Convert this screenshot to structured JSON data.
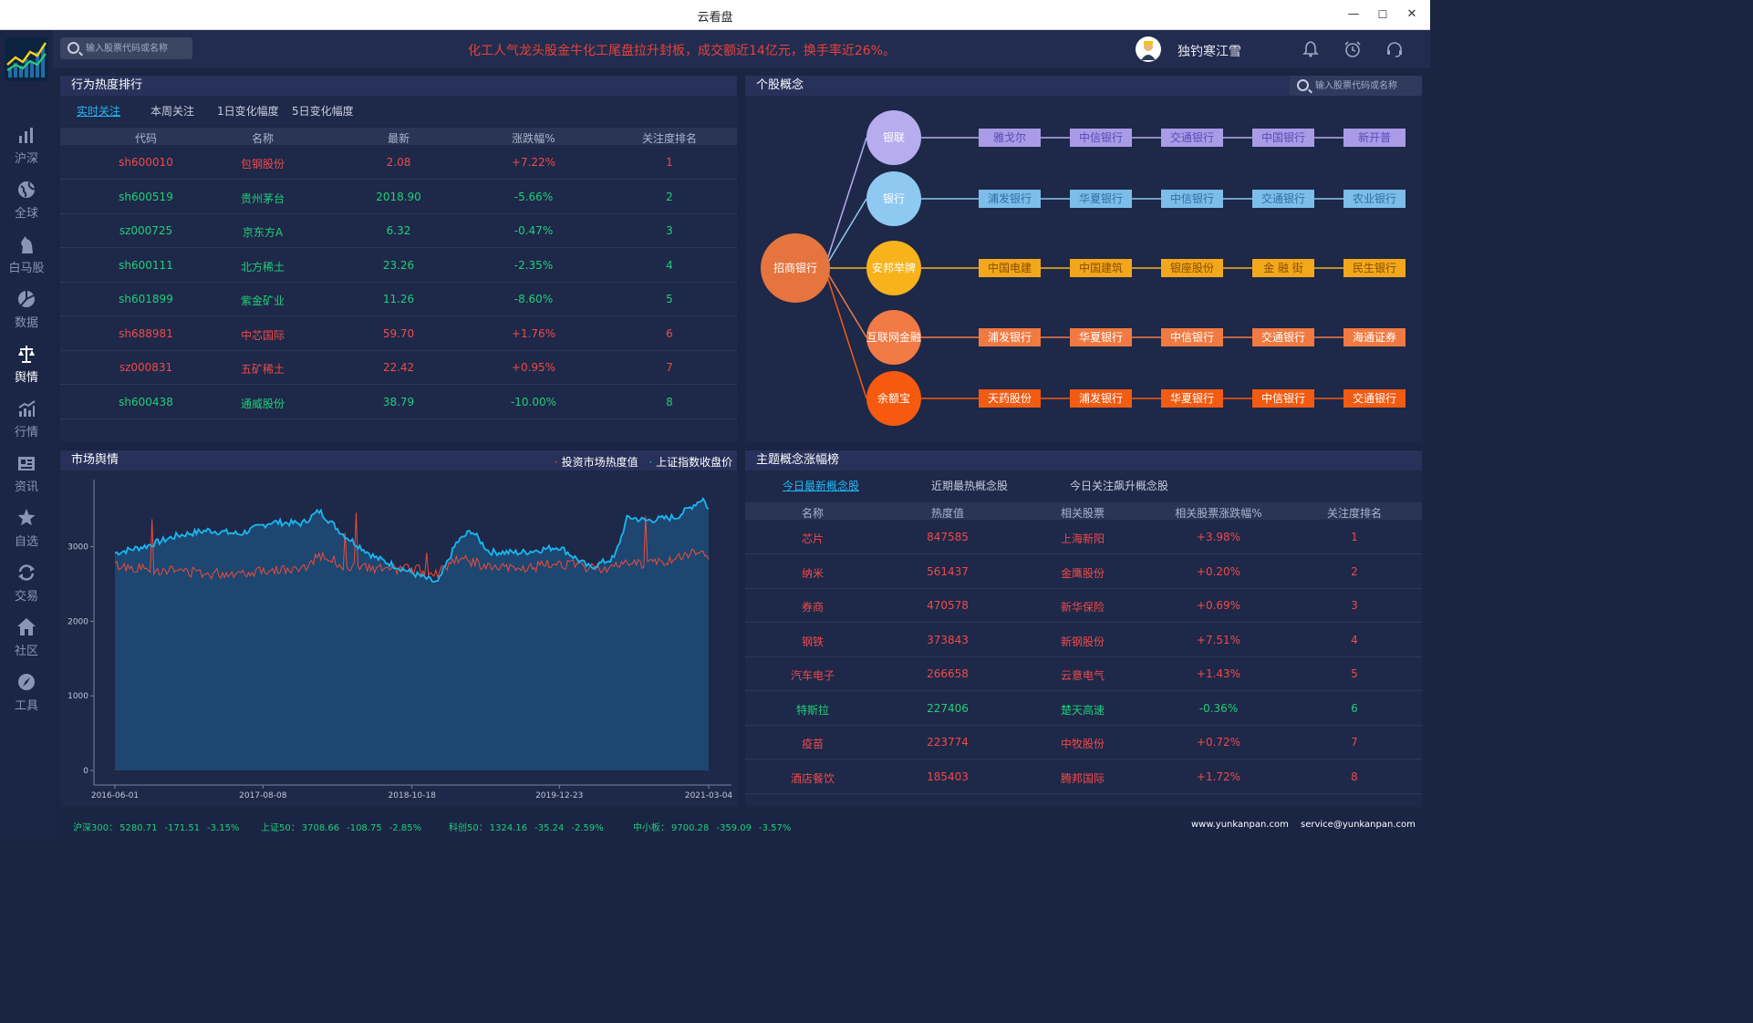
{
  "window": {
    "title": "云看盘",
    "minimize": "—",
    "maximize": "☐",
    "close": "✕"
  },
  "nav": [
    {
      "label": "沪深",
      "icon": "bar-chart-icon"
    },
    {
      "label": "全球",
      "icon": "globe-icon"
    },
    {
      "label": "白马股",
      "icon": "horse-icon"
    },
    {
      "label": "数据",
      "icon": "pie-chart-icon"
    },
    {
      "label": "舆情",
      "icon": "scales-icon"
    },
    {
      "label": "行情",
      "icon": "trend-icon"
    },
    {
      "label": "资讯",
      "icon": "news-icon"
    },
    {
      "label": "自选",
      "icon": "star-icon"
    },
    {
      "label": "交易",
      "icon": "exchange-icon"
    },
    {
      "label": "社区",
      "icon": "home-icon"
    },
    {
      "label": "工具",
      "icon": "compass-icon"
    }
  ],
  "topbar": {
    "search_placeholder": "输入股票代码或名称",
    "ticker": "化工人气龙头股金牛化工尾盘拉升封板，成交额近14亿元，换手率近26%。",
    "username": "独钓寒江雪"
  },
  "hot_rank": {
    "title": "行为热度排行",
    "tabs": [
      "实时关注",
      "本周关注",
      "1日变化幅度",
      "5日变化幅度"
    ],
    "columns": [
      "代码",
      "名称",
      "最新",
      "涨跌幅%",
      "关注度排名"
    ],
    "rows": [
      {
        "code": "sh600010",
        "name": "包钢股份",
        "price": "2.08",
        "change": "+7.22%",
        "rank": "1",
        "dir": "up"
      },
      {
        "code": "sh600519",
        "name": "贵州茅台",
        "price": "2018.90",
        "change": "-5.66%",
        "rank": "2",
        "dir": "down"
      },
      {
        "code": "sz000725",
        "name": "京东方A",
        "price": "6.32",
        "change": "-0.47%",
        "rank": "3",
        "dir": "down"
      },
      {
        "code": "sh600111",
        "name": "北方稀土",
        "price": "23.26",
        "change": "-2.35%",
        "rank": "4",
        "dir": "down"
      },
      {
        "code": "sh601899",
        "name": "紫金矿业",
        "price": "11.26",
        "change": "-8.60%",
        "rank": "5",
        "dir": "down"
      },
      {
        "code": "sh688981",
        "name": "中芯国际",
        "price": "59.70",
        "change": "+1.76%",
        "rank": "6",
        "dir": "up"
      },
      {
        "code": "sz000831",
        "name": "五矿稀土",
        "price": "22.42",
        "change": "+0.95%",
        "rank": "7",
        "dir": "up"
      },
      {
        "code": "sh600438",
        "name": "通威股份",
        "price": "38.79",
        "change": "-10.00%",
        "rank": "8",
        "dir": "down"
      }
    ]
  },
  "concept": {
    "title": "个股概念",
    "search_placeholder": "输入股票代码或名称",
    "center": "招商银行",
    "groups": [
      {
        "name": "银联",
        "color": "#b6acee",
        "tag_color": "#a99be6",
        "text_color": "#5b4bb5",
        "items": [
          "雅戈尔",
          "中信银行",
          "交通银行",
          "中国银行",
          "新开普"
        ]
      },
      {
        "name": "银行",
        "color": "#8ec9f2",
        "tag_color": "#7cbde9",
        "text_color": "#2e6fa6",
        "items": [
          "浦发银行",
          "华夏银行",
          "中信银行",
          "交通银行",
          "农业银行"
        ]
      },
      {
        "name": "安邦举牌",
        "color": "#f7b21c",
        "tag_color": "#f2a81a",
        "text_color": "#8a4d00",
        "items": [
          "中国电建",
          "中国建筑",
          "银座股份",
          "金 融 街",
          "民生银行"
        ]
      },
      {
        "name": "互联网金融",
        "color": "#f27a45",
        "tag_color": "#f07a42",
        "text_color": "#ffffff",
        "items": [
          "浦发银行",
          "华夏银行",
          "中信银行",
          "交通银行",
          "海通证券"
        ]
      },
      {
        "name": "余额宝",
        "color": "#f55a0f",
        "tag_color": "#f25b12",
        "text_color": "#ffffff",
        "items": [
          "天药股份",
          "浦发银行",
          "华夏银行",
          "中信银行",
          "交通银行"
        ]
      }
    ],
    "center_color": "#e6743e"
  },
  "market": {
    "title": "市场舆情",
    "legend": [
      "投资市场热度值",
      "上证指数收盘价"
    ],
    "legend_colors": [
      "#f04a3a",
      "#18b8f0"
    ]
  },
  "chart_data": {
    "type": "line",
    "x_range": [
      "2016-06-01",
      "2021-03-04"
    ],
    "x_ticks": [
      "2016-06-01",
      "2017-08-08",
      "2018-10-18",
      "2019-12-23",
      "2021-03-04"
    ],
    "y_ticks": [
      "0",
      "1000",
      "2000",
      "3000"
    ],
    "ylim": [
      0,
      3900
    ],
    "series": [
      {
        "name": "上证指数收盘价",
        "color": "#18b8f0",
        "x": [
          "2016-06-01",
          "2016-09-01",
          "2016-12-01",
          "2017-03-01",
          "2017-06-01",
          "2017-09-01",
          "2017-12-01",
          "2018-01-20",
          "2018-04-01",
          "2018-07-01",
          "2018-10-18",
          "2019-01-01",
          "2019-02-25",
          "2019-04-10",
          "2019-06-01",
          "2019-09-01",
          "2019-12-23",
          "2020-03-20",
          "2020-06-01",
          "2020-07-10",
          "2020-09-01",
          "2020-12-01",
          "2021-02-15",
          "2021-03-04"
        ],
        "values": [
          2916,
          3010,
          3150,
          3220,
          3170,
          3330,
          3310,
          3480,
          3160,
          2860,
          2650,
          2510,
          3050,
          3220,
          2930,
          2920,
          3000,
          2720,
          2850,
          3400,
          3350,
          3400,
          3650,
          3500
        ]
      },
      {
        "name": "投资市场热度值",
        "color": "#f04a3a",
        "x": [
          "2016-06-01",
          "2016-09-01",
          "2016-12-01",
          "2017-03-01",
          "2017-06-01",
          "2017-09-01",
          "2017-12-01",
          "2018-01-20",
          "2018-04-01",
          "2018-07-01",
          "2018-10-18",
          "2019-01-01",
          "2019-02-25",
          "2019-04-10",
          "2019-06-01",
          "2019-09-01",
          "2019-12-23",
          "2020-03-20",
          "2020-06-01",
          "2020-07-10",
          "2020-09-01",
          "2020-12-01",
          "2021-02-15",
          "2021-03-04"
        ],
        "values": [
          2750,
          2700,
          2680,
          2640,
          2650,
          2700,
          2680,
          2900,
          2750,
          2700,
          2700,
          2650,
          2850,
          2800,
          2720,
          2700,
          2780,
          2720,
          2720,
          2800,
          2760,
          2840,
          2950,
          2850
        ]
      }
    ]
  },
  "theme_rank": {
    "title": "主题概念涨幅榜",
    "tabs": [
      "今日最新概念股",
      "近期最热概念股",
      "今日关注飙升概念股"
    ],
    "columns": [
      "名称",
      "热度值",
      "相关股票",
      "相关股票涨跌幅%",
      "关注度排名"
    ],
    "rows": [
      {
        "name": "芯片",
        "heat": "847585",
        "stock": "上海新阳",
        "change": "+3.98%",
        "rank": "1",
        "dir": "up"
      },
      {
        "name": "纳米",
        "heat": "561437",
        "stock": "金鹰股份",
        "change": "+0.20%",
        "rank": "2",
        "dir": "up"
      },
      {
        "name": "券商",
        "heat": "470578",
        "stock": "新华保险",
        "change": "+0.69%",
        "rank": "3",
        "dir": "up"
      },
      {
        "name": "钢铁",
        "heat": "373843",
        "stock": "新钢股份",
        "change": "+7.51%",
        "rank": "4",
        "dir": "up"
      },
      {
        "name": "汽车电子",
        "heat": "266658",
        "stock": "云意电气",
        "change": "+1.43%",
        "rank": "5",
        "dir": "up"
      },
      {
        "name": "特斯拉",
        "heat": "227406",
        "stock": "楚天高速",
        "change": "-0.36%",
        "rank": "6",
        "dir": "down"
      },
      {
        "name": "疫苗",
        "heat": "223774",
        "stock": "中牧股份",
        "change": "+0.72%",
        "rank": "7",
        "dir": "up"
      },
      {
        "name": "酒店餐饮",
        "heat": "185403",
        "stock": "腾邦国际",
        "change": "+1.72%",
        "rank": "8",
        "dir": "up"
      }
    ]
  },
  "bottom": {
    "indices": [
      {
        "name": "沪深300：",
        "value": "5280.71",
        "diff": "-171.51",
        "pct": "-3.15%"
      },
      {
        "name": "上证50：",
        "value": "3708.66",
        "diff": "-108.75",
        "pct": "-2.85%"
      },
      {
        "name": "科创50：",
        "value": "1324.16",
        "diff": "-35.24",
        "pct": "-2.59%"
      },
      {
        "name": "中小板：",
        "value": "9700.28",
        "diff": "-359.09",
        "pct": "-3.57%"
      }
    ],
    "website": "www.yunkanpan.com",
    "email": "service@yunkanpan.com"
  }
}
